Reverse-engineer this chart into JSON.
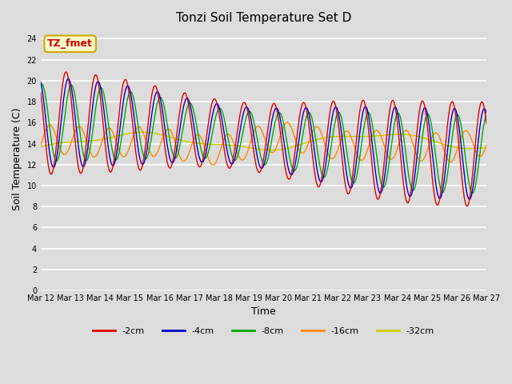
{
  "title": "Tonzi Soil Temperature Set D",
  "xlabel": "Time",
  "ylabel": "Soil Temperature (C)",
  "ylim": [
    0,
    25
  ],
  "yticks": [
    0,
    2,
    4,
    6,
    8,
    10,
    12,
    14,
    16,
    18,
    20,
    22,
    24
  ],
  "annotation_text": "TZ_fmet",
  "annotation_color": "#cc0000",
  "annotation_bg": "#ffffcc",
  "annotation_border": "#ccaa00",
  "colors": {
    "-2cm": "#dd0000",
    "-4cm": "#0000cc",
    "-8cm": "#00aa00",
    "-16cm": "#ff8800",
    "-32cm": "#cccc00"
  },
  "legend_labels": [
    "-2cm",
    "-4cm",
    "-8cm",
    "-16cm",
    "-32cm"
  ],
  "bg_color": "#dcdcdc",
  "plot_bg_color": "#dcdcdc",
  "x_tick_labels": [
    "Mar 12",
    "Mar 13",
    "Mar 14",
    "Mar 15",
    "Mar 16",
    "Mar 17",
    "Mar 18",
    "Mar 19",
    "Mar 20",
    "Mar 21",
    "Mar 22",
    "Mar 23",
    "Mar 24",
    "Mar 25",
    "Mar 26",
    "Mar 27"
  ]
}
